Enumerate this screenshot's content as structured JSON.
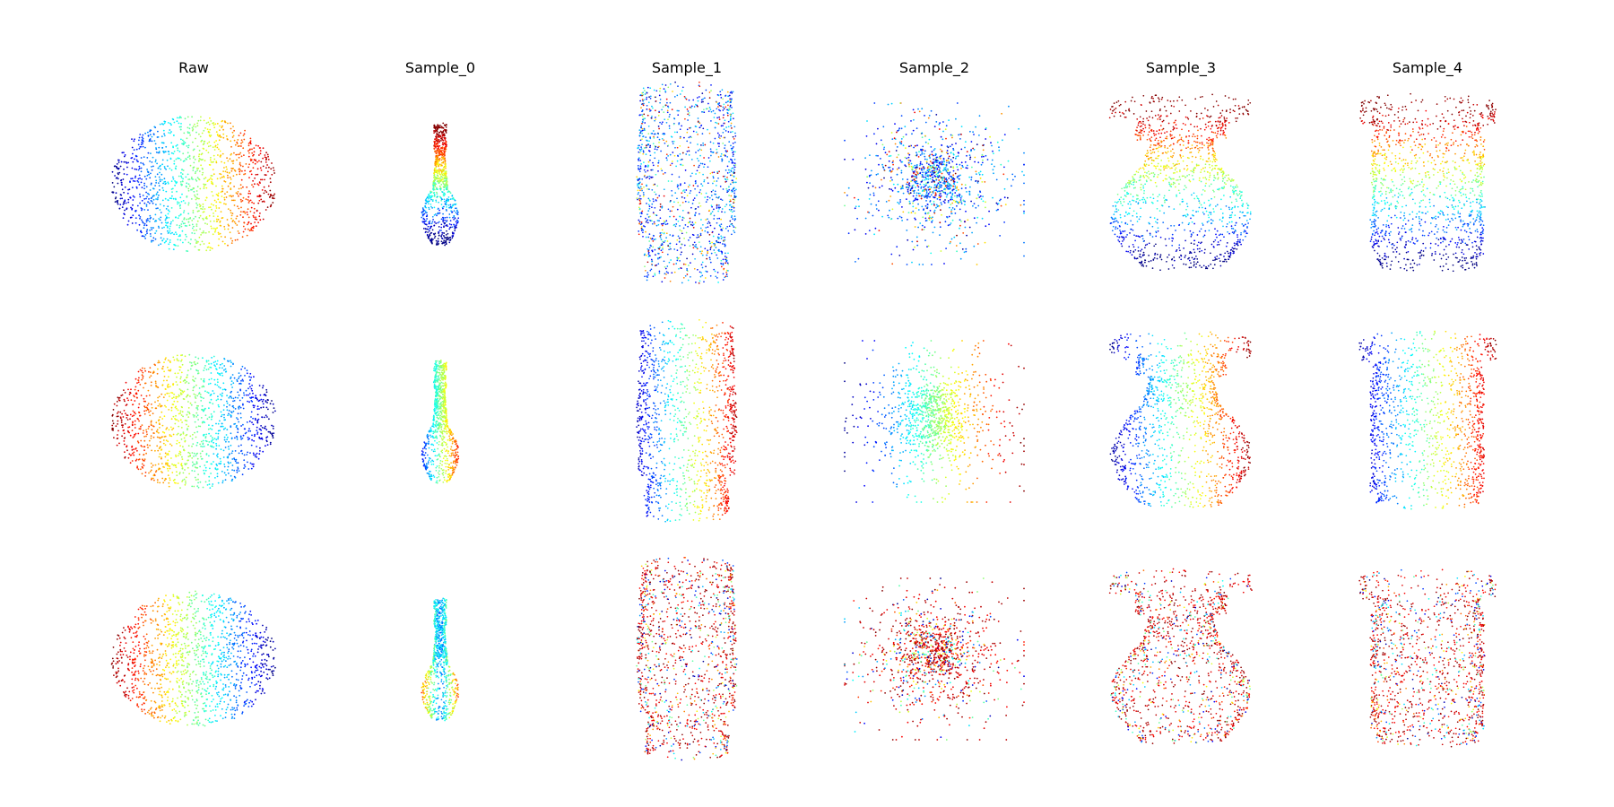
{
  "figure": {
    "columns": [
      "Raw",
      "Sample_0",
      "Sample_1",
      "Sample_2",
      "Sample_3",
      "Sample_4"
    ],
    "rows": 3,
    "colormap": [
      "#00007f",
      "#0000ff",
      "#007fff",
      "#00ffff",
      "#7fff7f",
      "#ffff00",
      "#ff7f00",
      "#ff0000",
      "#7f0000"
    ]
  },
  "panels": [
    {
      "column": "Raw",
      "row": 0,
      "shape": "ellipsoid",
      "color_gradient": "blue-left-to-red-right"
    },
    {
      "column": "Sample_0",
      "row": 0,
      "shape": "slender-bottle",
      "color_gradient": "red-top-to-blue-bottom"
    },
    {
      "column": "Sample_1",
      "row": 0,
      "shape": "tall-jar",
      "color_gradient": "mixed-blue-center"
    },
    {
      "column": "Sample_2",
      "row": 0,
      "shape": "diffuse-cloud",
      "color_gradient": "mixed-blue-center"
    },
    {
      "column": "Sample_3",
      "row": 0,
      "shape": "flared-vase",
      "color_gradient": "red-top-to-blue-bottom"
    },
    {
      "column": "Sample_4",
      "row": 0,
      "shape": "jar-with-rim",
      "color_gradient": "red-top-to-blue-bottom"
    },
    {
      "column": "Raw",
      "row": 1,
      "shape": "ellipsoid",
      "color_gradient": "red-left-to-blue-right"
    },
    {
      "column": "Sample_0",
      "row": 1,
      "shape": "slender-bottle",
      "color_gradient": "blue-left-to-red-right"
    },
    {
      "column": "Sample_1",
      "row": 1,
      "shape": "tall-jar",
      "color_gradient": "blue-left-to-red-right"
    },
    {
      "column": "Sample_2",
      "row": 1,
      "shape": "diffuse-cloud",
      "color_gradient": "blue-left-to-red-right"
    },
    {
      "column": "Sample_3",
      "row": 1,
      "shape": "flared-vase",
      "color_gradient": "blue-left-to-red-right"
    },
    {
      "column": "Sample_4",
      "row": 1,
      "shape": "jar-with-rim",
      "color_gradient": "blue-left-to-red-right"
    },
    {
      "column": "Raw",
      "row": 2,
      "shape": "ellipsoid",
      "color_gradient": "red-left-to-blue-right"
    },
    {
      "column": "Sample_0",
      "row": 2,
      "shape": "slender-bottle",
      "color_gradient": "red-sides-blue-center"
    },
    {
      "column": "Sample_1",
      "row": 2,
      "shape": "tall-jar",
      "color_gradient": "red-dominant"
    },
    {
      "column": "Sample_2",
      "row": 2,
      "shape": "diffuse-cloud",
      "color_gradient": "red-dominant"
    },
    {
      "column": "Sample_3",
      "row": 2,
      "shape": "flared-vase",
      "color_gradient": "red-dominant"
    },
    {
      "column": "Sample_4",
      "row": 2,
      "shape": "jar-with-rim",
      "color_gradient": "red-dominant"
    }
  ]
}
